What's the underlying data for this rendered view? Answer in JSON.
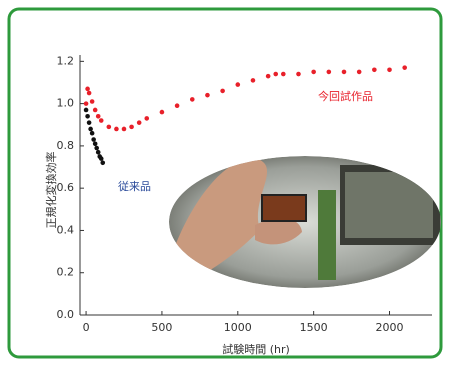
{
  "chart_data": {
    "type": "scatter",
    "x_label": "試験時間 (hr)",
    "y_label": "正規化変換効率",
    "xlim": [
      -40,
      2280
    ],
    "xticks": [
      0,
      500,
      1000,
      1500,
      2000
    ],
    "ylim": [
      0,
      1.23
    ],
    "yticks": [
      {
        "value": 0,
        "label": "0.0"
      },
      {
        "value": 0.2,
        "label": "0.2"
      },
      {
        "value": 0.4,
        "label": "0.4"
      },
      {
        "value": 0.6,
        "label": "0.6"
      },
      {
        "value": 0.8,
        "label": "0.8"
      },
      {
        "value": 1,
        "label": "1.0"
      },
      {
        "value": 1.2,
        "label": "1.2"
      }
    ],
    "series": [
      {
        "name": "今回試作品",
        "color": "#e8202a",
        "x": [
          0,
          10,
          20,
          40,
          60,
          80,
          100,
          150,
          200,
          250,
          300,
          350,
          400,
          500,
          600,
          700,
          800,
          900,
          1000,
          1100,
          1200,
          1250,
          1300,
          1400,
          1500,
          1600,
          1700,
          1800,
          1900,
          2000,
          2100
        ],
        "values": [
          1.0,
          1.07,
          1.05,
          1.01,
          0.97,
          0.94,
          0.92,
          0.89,
          0.88,
          0.88,
          0.89,
          0.91,
          0.93,
          0.96,
          0.99,
          1.02,
          1.04,
          1.06,
          1.09,
          1.11,
          1.13,
          1.14,
          1.14,
          1.14,
          1.15,
          1.15,
          1.15,
          1.15,
          1.16,
          1.16,
          1.17
        ]
      },
      {
        "name": "従来品",
        "color": "#111111",
        "x": [
          0,
          10,
          20,
          30,
          40,
          50,
          60,
          70,
          80,
          90,
          100,
          110
        ],
        "values": [
          0.97,
          0.94,
          0.91,
          0.88,
          0.86,
          0.83,
          0.81,
          0.79,
          0.77,
          0.75,
          0.74,
          0.72
        ]
      }
    ]
  }
}
